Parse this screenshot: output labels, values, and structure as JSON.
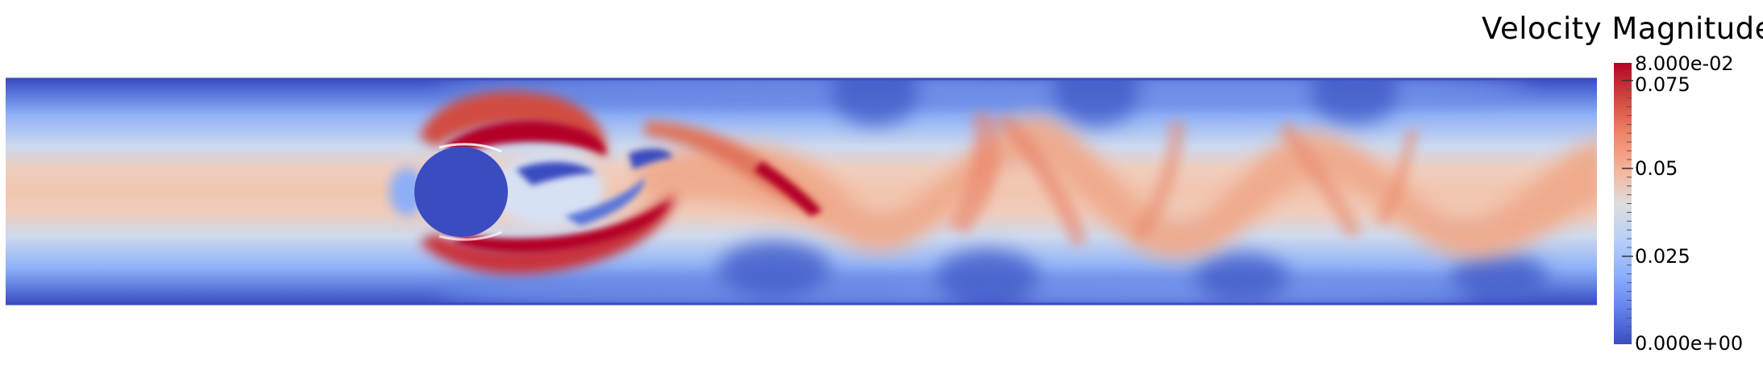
{
  "colorbar": {
    "title": "Velocity Magnitude",
    "range": [
      0,
      0.08
    ],
    "max_label": "8.000e-02",
    "min_label": "0.000e+00",
    "tick_labels": [
      "0.075",
      "0.05",
      "0.025"
    ],
    "tick_values": [
      0.075,
      0.05,
      0.025
    ],
    "colormap": {
      "name": "Cool to Warm",
      "low": "#3b4cc0",
      "mid": "#dddddd",
      "high": "#b40426"
    }
  },
  "plot": {
    "field": "Velocity Magnitude",
    "obstacle": "cylinder",
    "obstacle_color": "#3b4cc0",
    "inflow_color": "#f2c6b0",
    "wall_color": "#3b4cc0",
    "background": "#ffffff"
  }
}
